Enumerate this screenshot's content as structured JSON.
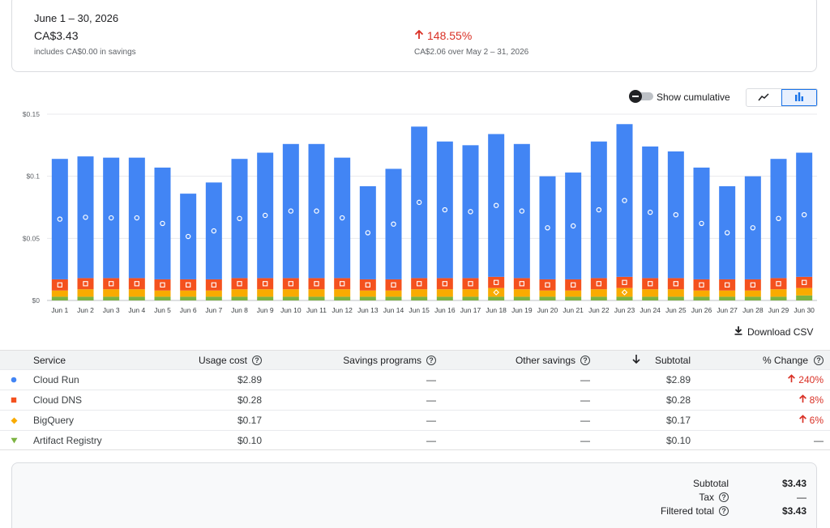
{
  "summary": {
    "period": "June 1 – 30, 2026",
    "cost": "CA$3.43",
    "savings_note": "includes CA$0.00 in savings",
    "change_pct": "148.55%",
    "change_note": "CA$2.06 over May 2 – 31, 2026"
  },
  "controls": {
    "cumulative_label": "Show cumulative",
    "line_view_icon": "line-chart-icon",
    "bar_view_icon": "bar-chart-icon",
    "download_label": "Download CSV"
  },
  "chart_data": {
    "type": "bar",
    "stacked": true,
    "y_ticks": [
      "$0",
      "$0.05",
      "$0.1",
      "$0.15"
    ],
    "ylim": [
      0,
      0.15
    ],
    "categories": [
      "Jun 1",
      "Jun 2",
      "Jun 3",
      "Jun 4",
      "Jun 5",
      "Jun 6",
      "Jun 7",
      "Jun 8",
      "Jun 9",
      "Jun 10",
      "Jun 11",
      "Jun 12",
      "Jun 13",
      "Jun 14",
      "Jun 15",
      "Jun 16",
      "Jun 17",
      "Jun 18",
      "Jun 19",
      "Jun 20",
      "Jun 21",
      "Jun 22",
      "Jun 23",
      "Jun 24",
      "Jun 25",
      "Jun 26",
      "Jun 27",
      "Jun 28",
      "Jun 29",
      "Jun 30"
    ],
    "series": [
      {
        "name": "Artifact Registry",
        "color": "#7cb342",
        "values": [
          0.003,
          0.003,
          0.003,
          0.003,
          0.003,
          0.003,
          0.003,
          0.003,
          0.003,
          0.003,
          0.003,
          0.003,
          0.003,
          0.003,
          0.003,
          0.003,
          0.003,
          0.003,
          0.003,
          0.003,
          0.003,
          0.003,
          0.003,
          0.003,
          0.003,
          0.003,
          0.003,
          0.003,
          0.003,
          0.004
        ]
      },
      {
        "name": "BigQuery",
        "color": "#f9ab00",
        "values": [
          0.005,
          0.006,
          0.006,
          0.006,
          0.005,
          0.005,
          0.005,
          0.006,
          0.006,
          0.006,
          0.006,
          0.006,
          0.005,
          0.005,
          0.006,
          0.006,
          0.006,
          0.007,
          0.006,
          0.005,
          0.005,
          0.006,
          0.007,
          0.006,
          0.006,
          0.005,
          0.005,
          0.005,
          0.006,
          0.006
        ]
      },
      {
        "name": "Cloud DNS",
        "color": "#f4511e",
        "values": [
          0.009,
          0.009,
          0.009,
          0.009,
          0.009,
          0.009,
          0.009,
          0.009,
          0.009,
          0.009,
          0.009,
          0.009,
          0.009,
          0.009,
          0.009,
          0.009,
          0.009,
          0.009,
          0.009,
          0.009,
          0.009,
          0.009,
          0.009,
          0.009,
          0.009,
          0.009,
          0.009,
          0.009,
          0.009,
          0.009
        ]
      },
      {
        "name": "Cloud Run",
        "color": "#4285f4",
        "values": [
          0.097,
          0.098,
          0.097,
          0.097,
          0.09,
          0.069,
          0.078,
          0.096,
          0.101,
          0.108,
          0.108,
          0.097,
          0.075,
          0.089,
          0.122,
          0.11,
          0.107,
          0.115,
          0.108,
          0.083,
          0.086,
          0.11,
          0.123,
          0.106,
          0.102,
          0.09,
          0.075,
          0.083,
          0.096,
          0.1
        ]
      }
    ]
  },
  "table": {
    "headers": {
      "service": "Service",
      "usage": "Usage cost",
      "savings": "Savings programs",
      "other": "Other savings",
      "subtotal": "Subtotal",
      "change": "% Change"
    },
    "rows": [
      {
        "service": "Cloud Run",
        "usage": "$2.89",
        "savings": "—",
        "other": "—",
        "subtotal": "$2.89",
        "change": "240%",
        "marker_color": "#4285f4"
      },
      {
        "service": "Cloud DNS",
        "usage": "$0.28",
        "savings": "—",
        "other": "—",
        "subtotal": "$0.28",
        "change": "8%",
        "marker_color": "#f4511e"
      },
      {
        "service": "BigQuery",
        "usage": "$0.17",
        "savings": "—",
        "other": "—",
        "subtotal": "$0.17",
        "change": "6%",
        "marker_color": "#f9ab00"
      },
      {
        "service": "Artifact Registry",
        "usage": "$0.10",
        "savings": "—",
        "other": "—",
        "subtotal": "$0.10",
        "change": "—",
        "marker_color": "#7cb342"
      }
    ]
  },
  "totals": {
    "subtotal_label": "Subtotal",
    "subtotal": "$3.43",
    "tax_label": "Tax",
    "tax": "—",
    "filtered_label": "Filtered total",
    "filtered": "$3.43"
  }
}
